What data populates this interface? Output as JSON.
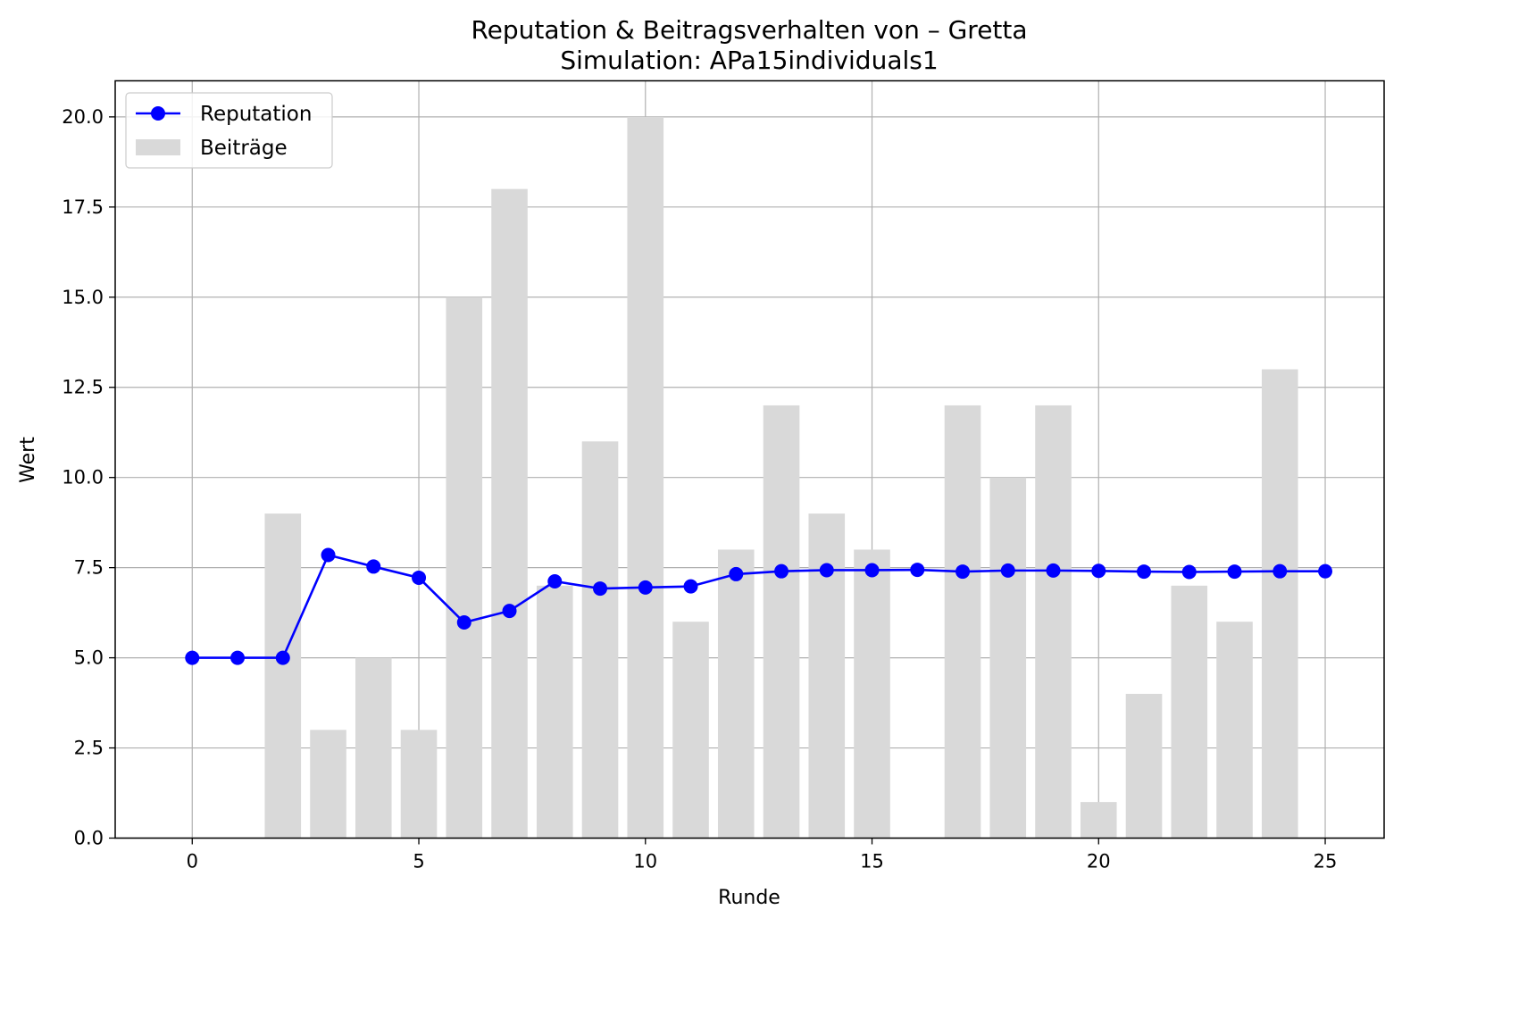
{
  "chart_data": {
    "type": "bar",
    "title": "Reputation & Beitragsverhalten von – Gretta",
    "subtitle": "Simulation: APa15individuals1",
    "xlabel": "Runde",
    "ylabel": "Wert",
    "xlim": [
      -1.7,
      26.3
    ],
    "ylim": [
      0,
      21
    ],
    "x_ticks": [
      0,
      5,
      10,
      15,
      20,
      25
    ],
    "y_ticks": [
      0.0,
      2.5,
      5.0,
      7.5,
      10.0,
      12.5,
      15.0,
      17.5,
      20.0
    ],
    "x_tick_labels": [
      "0",
      "5",
      "10",
      "15",
      "20",
      "25"
    ],
    "y_tick_labels": [
      "0.0",
      "2.5",
      "5.0",
      "7.5",
      "10.0",
      "12.5",
      "15.0",
      "17.5",
      "20.0"
    ],
    "grid": true,
    "legend_position": "top-left",
    "x": [
      0,
      1,
      2,
      3,
      4,
      5,
      6,
      7,
      8,
      9,
      10,
      11,
      12,
      13,
      14,
      15,
      16,
      17,
      18,
      19,
      20,
      21,
      22,
      23,
      24,
      25
    ],
    "series": [
      {
        "name": "Reputation",
        "type": "line",
        "marker": "circle",
        "color": "#0000ff",
        "values": [
          5.0,
          5.0,
          5.0,
          7.85,
          7.53,
          7.22,
          5.98,
          6.3,
          7.12,
          6.92,
          6.95,
          6.98,
          7.32,
          7.4,
          7.43,
          7.43,
          7.44,
          7.39,
          7.42,
          7.42,
          7.41,
          7.39,
          7.38,
          7.39,
          7.4,
          7.4
        ]
      },
      {
        "name": "Beiträge",
        "type": "bar",
        "color": "#d9d9d9",
        "values": [
          0,
          0,
          9,
          3,
          5,
          3,
          15,
          18,
          7,
          11,
          20,
          6,
          8,
          12,
          9,
          8,
          0,
          12,
          10,
          12,
          1,
          4,
          7,
          6,
          13,
          0
        ]
      }
    ]
  }
}
